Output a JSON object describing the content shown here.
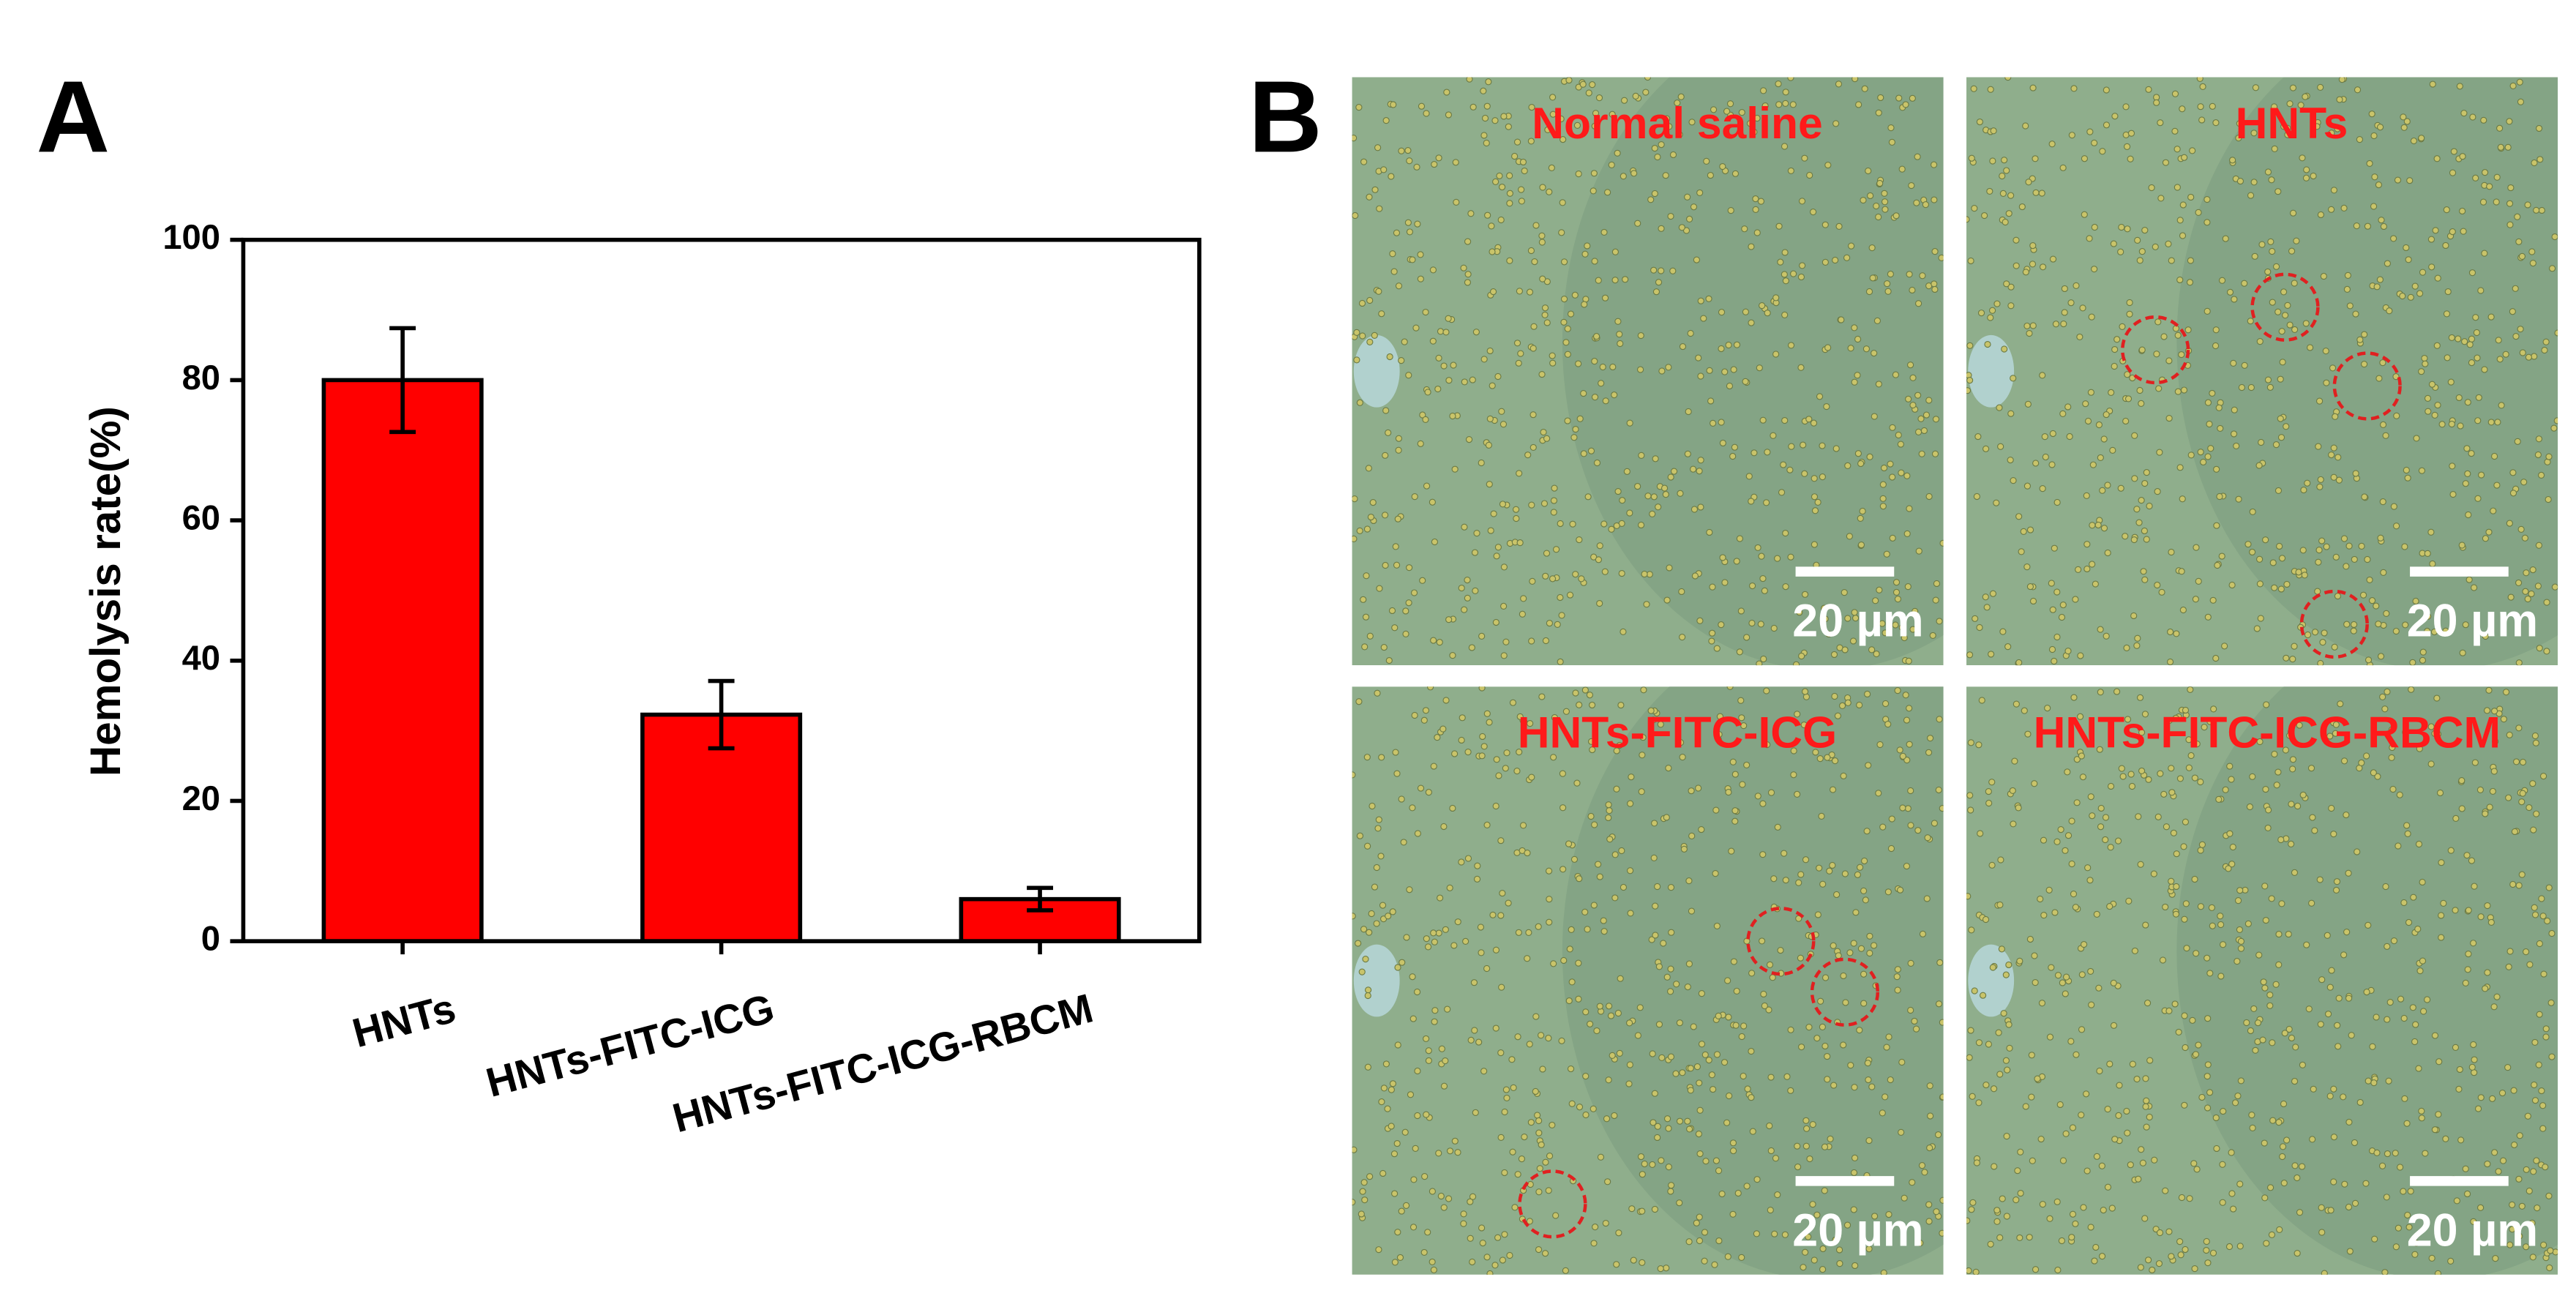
{
  "panel_labels": [
    "A",
    "B"
  ],
  "chart_data": {
    "type": "bar",
    "y_label": "Hemolysis rate(%)",
    "categories": [
      "HNTs",
      "HNTs-FITC-ICG",
      "HNTs-FITC-ICG-RBCM"
    ],
    "values": [
      80,
      32.3,
      6
    ],
    "errors": [
      7.4,
      4.8,
      1.6
    ],
    "color": "#ff0000",
    "ylim": [
      0,
      100
    ],
    "yticks": [
      0,
      20,
      40,
      60,
      80,
      100
    ]
  },
  "micrographs": [
    {
      "label": "Normal saline",
      "scale_bar": "20 µm"
    },
    {
      "label": "HNTs",
      "scale_bar": "20 µm"
    },
    {
      "label": "HNTs-FITC-ICG",
      "scale_bar": "20 µm"
    },
    {
      "label": "HNTs-FITC-ICG-RBCM",
      "scale_bar": "20 µm"
    }
  ]
}
